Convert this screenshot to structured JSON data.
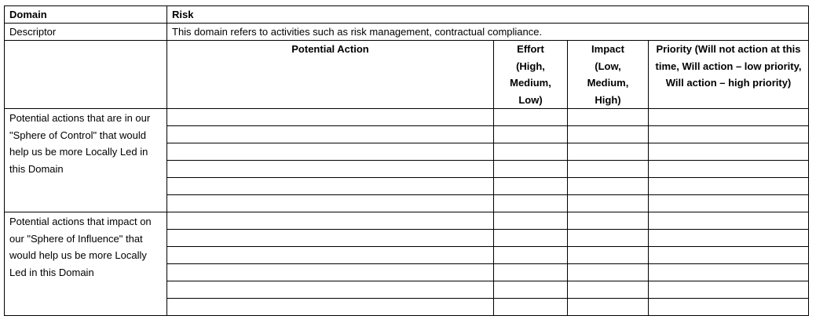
{
  "domain_row": {
    "label": "Domain",
    "value": "Risk"
  },
  "descriptor_row": {
    "label": "Descriptor",
    "value": "This domain refers to activities such as risk management, contractual compliance."
  },
  "headers": {
    "potential_action": "Potential Action",
    "effort": "Effort (High, Medium, Low)",
    "impact": "Impact (Low, Medium, High)",
    "priority": "Priority (Will not action at this time, Will action – low priority, Will action – high priority)"
  },
  "sections": [
    {
      "label": "Potential actions that are in our \"Sphere of Control\" that would help us be more Locally Led in this Domain",
      "rows": 6
    },
    {
      "label": "Potential actions that impact on our \"Sphere of Influence\" that would help us be more Locally Led in this Domain",
      "rows": 6
    }
  ]
}
